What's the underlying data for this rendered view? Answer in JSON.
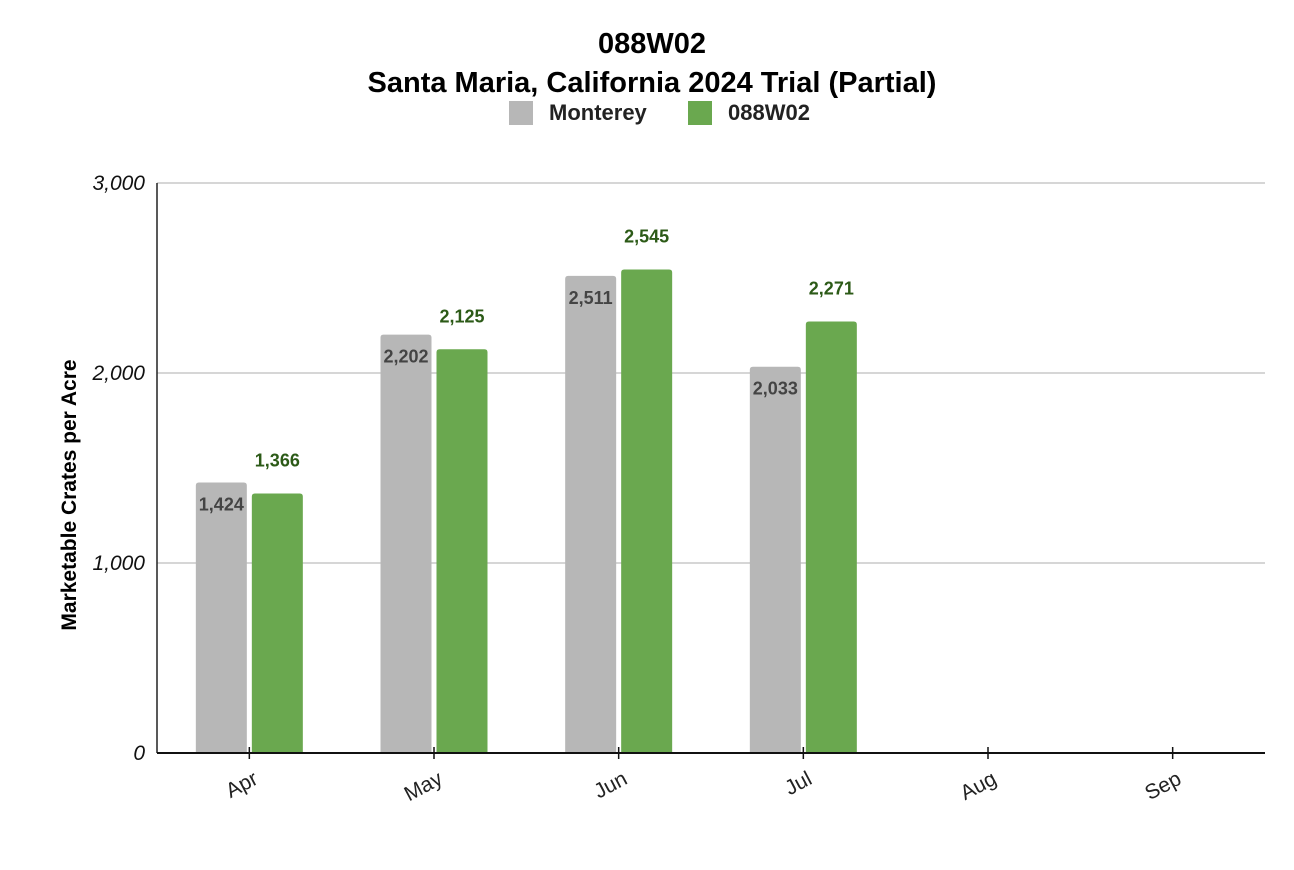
{
  "chart_data": {
    "type": "bar",
    "title": "088W02",
    "subtitle": "Santa Maria, California 2024 Trial (Partial)",
    "ylabel": "Marketable Crates per Acre",
    "xlabel": "",
    "categories": [
      "Apr",
      "May",
      "Jun",
      "Jul",
      "Aug",
      "Sep"
    ],
    "series": [
      {
        "name": "Monterey",
        "color": "#b7b7b7",
        "values": [
          1424,
          2202,
          2511,
          2033,
          null,
          null
        ],
        "labels": [
          "1,424",
          "2,202",
          "2,511",
          "2,033",
          "",
          ""
        ]
      },
      {
        "name": "088W02",
        "color": "#6aa84f",
        "values": [
          1366,
          2125,
          2545,
          2271,
          null,
          null
        ],
        "labels": [
          "1,366",
          "2,125",
          "2,545",
          "2,271",
          "",
          ""
        ]
      }
    ],
    "ylim": [
      0,
      3000
    ],
    "yticks": [
      0,
      1000,
      2000,
      3000
    ],
    "ytick_labels": [
      "0",
      "1,000",
      "2,000",
      "3,000"
    ],
    "grid": true,
    "legend_position": "top-center"
  }
}
